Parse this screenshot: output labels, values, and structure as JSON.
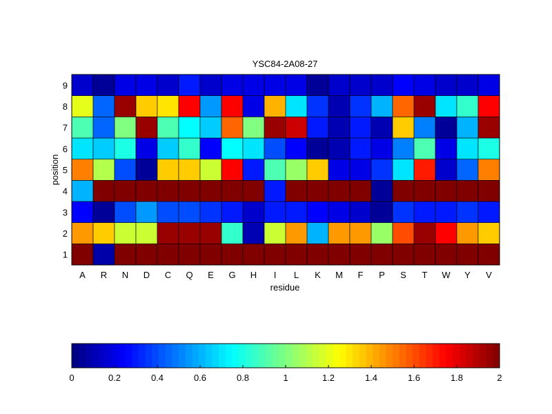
{
  "chart_data": {
    "type": "heatmap",
    "title": "YSC84-2A08-27",
    "xlabel": "residue",
    "ylabel": "position",
    "x": [
      "A",
      "R",
      "N",
      "D",
      "C",
      "Q",
      "E",
      "G",
      "H",
      "I",
      "L",
      "K",
      "M",
      "F",
      "P",
      "S",
      "T",
      "W",
      "Y",
      "V"
    ],
    "y": [
      1,
      2,
      3,
      4,
      5,
      6,
      7,
      8,
      9
    ],
    "values": [
      [
        2.0,
        0.08,
        2.0,
        2.0,
        2.0,
        2.0,
        2.0,
        2.0,
        2.0,
        2.0,
        2.0,
        2.0,
        2.0,
        2.0,
        2.0,
        2.0,
        2.0,
        2.0,
        2.0,
        2.0
      ],
      [
        1.45,
        1.35,
        1.15,
        1.15,
        1.95,
        1.95,
        1.95,
        0.85,
        0.1,
        1.15,
        1.45,
        0.6,
        1.45,
        1.45,
        1.05,
        1.6,
        1.95,
        1.75,
        1.45,
        1.35
      ],
      [
        0.25,
        0.05,
        0.4,
        0.55,
        0.4,
        0.4,
        0.35,
        0.3,
        0.15,
        0.3,
        0.3,
        0.25,
        0.2,
        0.15,
        0.05,
        0.35,
        0.3,
        0.3,
        0.35,
        0.3
      ],
      [
        0.6,
        2.0,
        2.0,
        2.0,
        2.0,
        2.0,
        2.0,
        2.0,
        2.0,
        0.3,
        2.0,
        2.0,
        2.0,
        2.0,
        0.05,
        2.0,
        2.0,
        2.0,
        2.0,
        2.0
      ],
      [
        1.5,
        1.1,
        0.4,
        0.05,
        1.35,
        1.35,
        1.15,
        1.75,
        0.3,
        0.9,
        1.05,
        1.35,
        0.2,
        0.2,
        0.35,
        0.7,
        1.7,
        0.15,
        0.45,
        1.5
      ],
      [
        0.7,
        0.65,
        0.8,
        0.2,
        0.65,
        0.85,
        0.25,
        0.75,
        0.7,
        0.4,
        0.25,
        0.05,
        0.1,
        0.3,
        0.2,
        0.5,
        0.9,
        0.2,
        0.7,
        0.8
      ],
      [
        0.9,
        0.45,
        1.0,
        1.95,
        0.9,
        0.75,
        0.65,
        1.55,
        1.0,
        1.95,
        1.85,
        0.3,
        0.1,
        0.3,
        0.1,
        1.35,
        0.5,
        0.05,
        0.6,
        1.95
      ],
      [
        1.2,
        0.45,
        1.95,
        1.35,
        1.3,
        1.75,
        0.55,
        1.75,
        0.2,
        1.4,
        0.7,
        0.35,
        0.1,
        0.35,
        0.6,
        1.55,
        1.95,
        0.7,
        0.85,
        1.75
      ],
      [
        0.15,
        0.05,
        0.2,
        0.2,
        0.15,
        0.3,
        0.15,
        0.2,
        0.2,
        0.2,
        0.2,
        0.05,
        0.15,
        0.15,
        0.15,
        0.25,
        0.2,
        0.15,
        0.15,
        0.2
      ]
    ],
    "clim": [
      0,
      2
    ],
    "colormap": "jet",
    "colorbar": {
      "orientation": "horizontal",
      "location": "bottom",
      "ticks": [
        "0",
        "0.2",
        "0.4",
        "0.6",
        "0.8",
        "1",
        "1.2",
        "1.4",
        "1.6",
        "1.8",
        "2"
      ]
    },
    "grid": false
  }
}
